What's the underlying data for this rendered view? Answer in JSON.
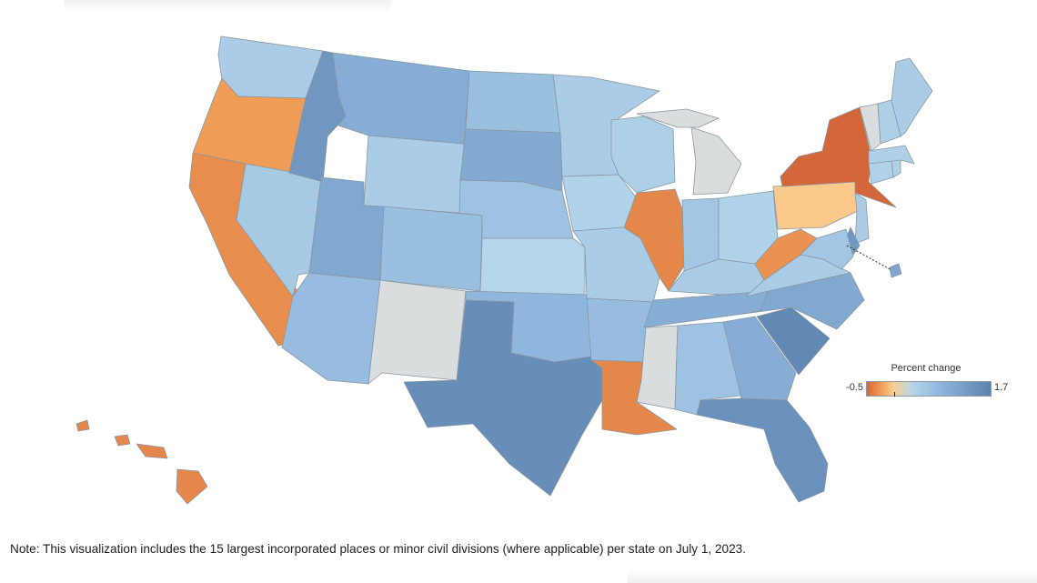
{
  "legend": {
    "title": "Percent change",
    "min_label": "-0.5",
    "max_label": "1.7",
    "min": -0.5,
    "max": 1.7,
    "colors": [
      "#d4673a",
      "#ef9d56",
      "#fccd8e",
      "#b5d6ea",
      "#8fb6dc",
      "#5b83ae"
    ]
  },
  "note": "Note: This visualization includes the 15 largest incorporated places or minor civil divisions (where applicable) per state on July 1, 2023.",
  "colors": {
    "no_data": "#d9dddd",
    "state_border": "#8a96a4"
  },
  "chart_data": {
    "type": "choropleth",
    "metric": "Percent change",
    "range": [
      -0.5,
      1.7
    ],
    "states": [
      {
        "state": "Washington",
        "value": 0.45
      },
      {
        "state": "Oregon",
        "value": -0.25
      },
      {
        "state": "California",
        "value": -0.32
      },
      {
        "state": "Nevada",
        "value": 0.5
      },
      {
        "state": "Idaho",
        "value": 1.35
      },
      {
        "state": "Montana",
        "value": 0.95
      },
      {
        "state": "Wyoming",
        "value": 0.45
      },
      {
        "state": "Utah",
        "value": 1.05
      },
      {
        "state": "Arizona",
        "value": 0.7
      },
      {
        "state": "Colorado",
        "value": 0.65
      },
      {
        "state": "New Mexico",
        "value": null
      },
      {
        "state": "North Dakota",
        "value": 0.65
      },
      {
        "state": "South Dakota",
        "value": 1.0
      },
      {
        "state": "Nebraska",
        "value": 0.6
      },
      {
        "state": "Kansas",
        "value": 0.3
      },
      {
        "state": "Oklahoma",
        "value": 0.8
      },
      {
        "state": "Texas",
        "value": 1.5
      },
      {
        "state": "Minnesota",
        "value": 0.45
      },
      {
        "state": "Iowa",
        "value": 0.35
      },
      {
        "state": "Missouri",
        "value": 0.45
      },
      {
        "state": "Arkansas",
        "value": 0.7
      },
      {
        "state": "Louisiana",
        "value": -0.35
      },
      {
        "state": "Wisconsin",
        "value": 0.4
      },
      {
        "state": "Illinois",
        "value": -0.35
      },
      {
        "state": "Michigan",
        "value": null
      },
      {
        "state": "Indiana",
        "value": 0.55
      },
      {
        "state": "Ohio",
        "value": 0.35
      },
      {
        "state": "Kentucky",
        "value": 0.45
      },
      {
        "state": "Tennessee",
        "value": 0.95
      },
      {
        "state": "Mississippi",
        "value": null
      },
      {
        "state": "Alabama",
        "value": 0.6
      },
      {
        "state": "Georgia",
        "value": 0.95
      },
      {
        "state": "Florida",
        "value": 1.45
      },
      {
        "state": "South Carolina",
        "value": 1.6
      },
      {
        "state": "North Carolina",
        "value": 1.05
      },
      {
        "state": "Virginia",
        "value": 0.45
      },
      {
        "state": "West Virginia",
        "value": -0.3
      },
      {
        "state": "Pennsylvania",
        "value": -0.05
      },
      {
        "state": "New York",
        "value": -0.5
      },
      {
        "state": "New Jersey",
        "value": 0.45
      },
      {
        "state": "Delaware",
        "value": 1.35
      },
      {
        "state": "Maryland",
        "value": 0.55
      },
      {
        "state": "District of Columbia",
        "value": 1.1
      },
      {
        "state": "Connecticut",
        "value": 0.35
      },
      {
        "state": "Rhode Island",
        "value": 0.4
      },
      {
        "state": "Massachusetts",
        "value": 0.4
      },
      {
        "state": "Vermont",
        "value": null
      },
      {
        "state": "New Hampshire",
        "value": 0.4
      },
      {
        "state": "Maine",
        "value": 0.45
      },
      {
        "state": "Hawaii",
        "value": -0.35
      }
    ]
  }
}
